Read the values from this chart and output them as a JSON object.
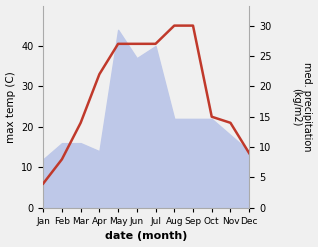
{
  "months": [
    "Jan",
    "Feb",
    "Mar",
    "Apr",
    "May",
    "Jun",
    "Jul",
    "Aug",
    "Sep",
    "Oct",
    "Nov",
    "Dec"
  ],
  "temperature": [
    12,
    16,
    16,
    14,
    44,
    37,
    40,
    22,
    22,
    22,
    18,
    14
  ],
  "precipitation": [
    4,
    8,
    14,
    22,
    27,
    27,
    27,
    30,
    30,
    15,
    14,
    9
  ],
  "temp_fill_color": "#bec8e8",
  "precip_color": "#c0392b",
  "xlabel": "date (month)",
  "ylabel_left": "max temp (C)",
  "ylabel_right": "med. precipitation\n(kg/m2)",
  "ylim_left": [
    0,
    50
  ],
  "ylim_right": [
    0,
    33.3
  ],
  "yticks_left": [
    0,
    10,
    20,
    30,
    40
  ],
  "yticks_right": [
    0,
    5,
    10,
    15,
    20,
    25,
    30
  ],
  "background_color": "#f0f0f0"
}
